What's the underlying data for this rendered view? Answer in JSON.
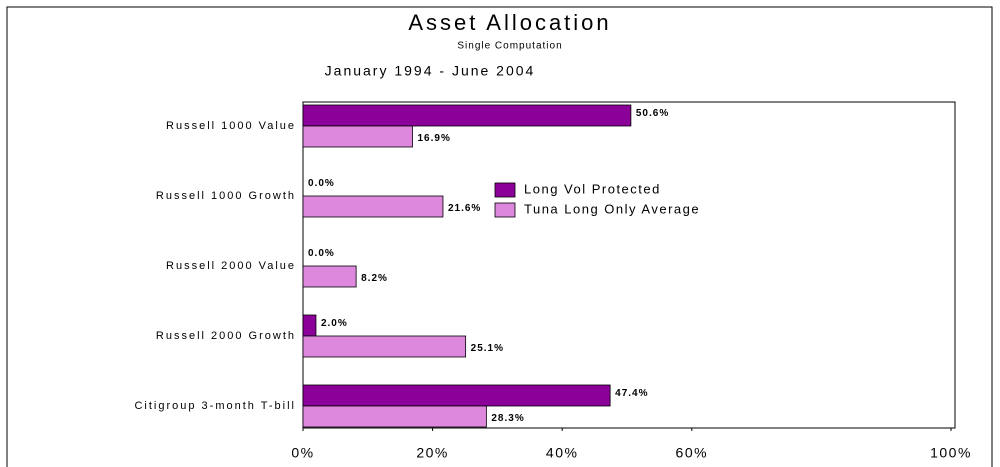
{
  "chart_data": {
    "type": "hbar",
    "title": "Asset Allocation",
    "subtitle": "Single Computation",
    "annotation": "January 1994 - June 2004",
    "categories": [
      "Russell 1000 Value",
      "Russell 1000 Growth",
      "Russell 2000 Value",
      "Russell 2000 Growth",
      "Citigroup 3-month T-bill"
    ],
    "series": [
      {
        "name": "Long Vol Protected",
        "color": "#8b0099",
        "values": [
          50.6,
          0,
          0,
          2,
          47.4
        ],
        "value_labels": [
          "50.6%",
          "0.0%",
          "0.0%",
          "2.0%",
          "47.4%"
        ]
      },
      {
        "name": "Tuna Long Only Average",
        "color": "#dd88dd",
        "values": [
          16.9,
          21.6,
          8.2,
          25.1,
          28.3
        ],
        "value_labels": [
          "16.9%",
          "21.6%",
          "8.2%",
          "25.1%",
          "28.3%"
        ]
      }
    ],
    "xlim": [
      0,
      100
    ],
    "xticks": [
      {
        "value": 0,
        "label": "0%"
      },
      {
        "value": 20,
        "label": "20%"
      },
      {
        "value": 40,
        "label": "40%"
      },
      {
        "value": 60,
        "label": "60%"
      },
      {
        "value": 100,
        "label": "100%"
      }
    ],
    "legend": "center"
  }
}
